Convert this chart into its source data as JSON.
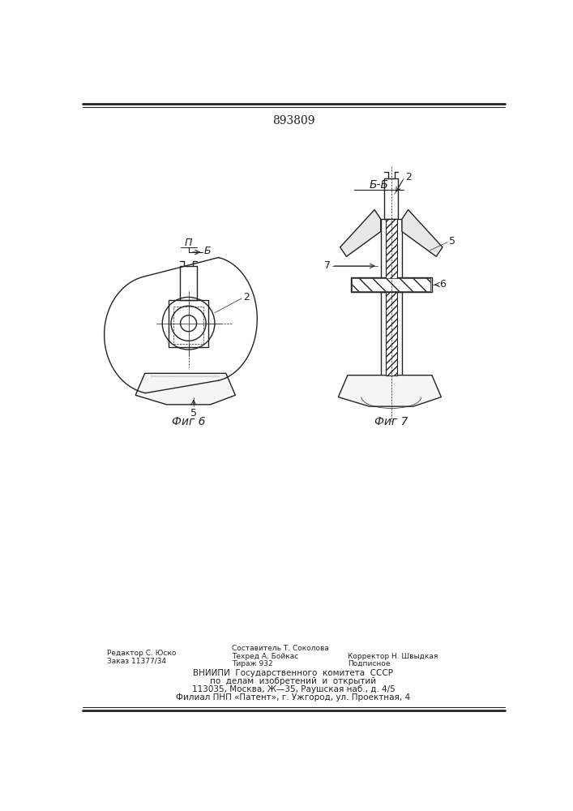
{
  "patent_number": "893809",
  "background_color": "#ffffff",
  "line_color": "#222222",
  "fig6_label": "Фиг 6",
  "fig7_label": "Фиг 7",
  "section_label": "Б-Б",
  "view_label_pi": "П",
  "view_label_b": "Б",
  "label2": "2",
  "label5_fig6": "5",
  "label5_fig7": "5",
  "label6": "6",
  "label7": "7",
  "footer_left_line1": "Редактор С. Юско",
  "footer_left_line2": "Заказ 11377/34",
  "footer_mid_line1": "Составитель Т. Соколова",
  "footer_mid_line2": "Техред А. Бойкас",
  "footer_mid_line3": "Тираж 932",
  "footer_right_line1": "Корректор Н. Швыдкая",
  "footer_right_line2": "Подписное",
  "footer_vniipi_line1": "ВНИИПИ  Государственного  комитета  СССР",
  "footer_vniipi_line2": "по  делам  изобретений  и  открытий",
  "footer_vniipi_line3": "113035, Москва, Ж—35, Раушская наб., д. 4/5",
  "footer_vniipi_line4": "Филиал ПНП «Патент», г. Ужгород, ул. Проектная, 4"
}
